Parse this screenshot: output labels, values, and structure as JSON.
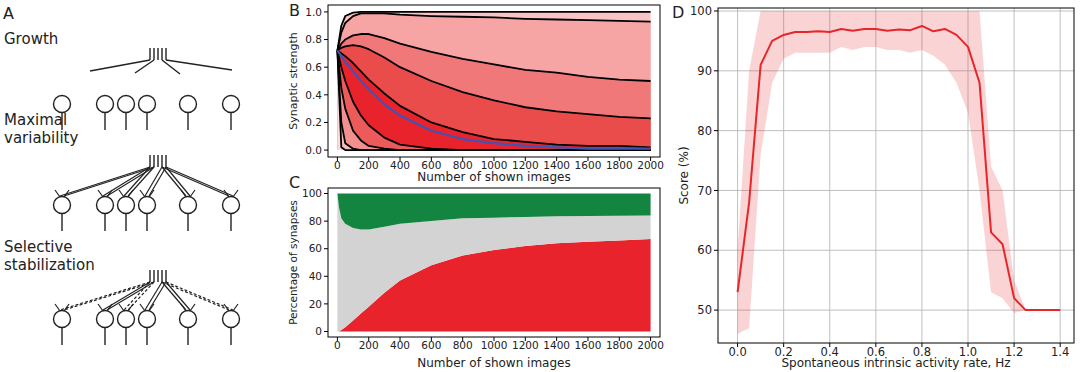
{
  "diagram": {
    "label": "A",
    "stages": [
      "Growth",
      "Maximal\nvariability",
      "Selective\nstabilization"
    ]
  },
  "chart_data": [
    {
      "type": "area",
      "title": "B",
      "x_label": "Number of shown images",
      "y_label": "Synaptic strength",
      "x": [
        0,
        25,
        50,
        100,
        150,
        200,
        300,
        400,
        600,
        800,
        1000,
        1200,
        1400,
        1600,
        1800,
        2000
      ],
      "series": [
        {
          "color": "#000000",
          "values": [
            0.72,
            0.9,
            0.97,
            0.995,
            1,
            1,
            1,
            1,
            1,
            1,
            1,
            1,
            1,
            1,
            1,
            1
          ]
        },
        {
          "color": "#000000",
          "values": [
            0.72,
            0.85,
            0.92,
            0.97,
            0.99,
            0.99,
            0.99,
            0.98,
            0.97,
            0.965,
            0.96,
            0.95,
            0.945,
            0.94,
            0.935,
            0.93
          ]
        },
        {
          "color": "#000000",
          "values": [
            0.72,
            0.77,
            0.8,
            0.83,
            0.84,
            0.84,
            0.81,
            0.77,
            0.71,
            0.66,
            0.62,
            0.58,
            0.56,
            0.53,
            0.51,
            0.5
          ]
        },
        {
          "color": "#000000",
          "values": [
            0.72,
            0.74,
            0.75,
            0.76,
            0.75,
            0.73,
            0.67,
            0.6,
            0.5,
            0.42,
            0.36,
            0.31,
            0.28,
            0.26,
            0.24,
            0.23
          ]
        },
        {
          "color": "#000000",
          "values": [
            0.72,
            0.7,
            0.68,
            0.63,
            0.57,
            0.51,
            0.41,
            0.32,
            0.2,
            0.13,
            0.08,
            0.06,
            0.04,
            0.03,
            0.03,
            0.02
          ]
        },
        {
          "color": "#000000",
          "values": [
            0.72,
            0.6,
            0.5,
            0.35,
            0.25,
            0.18,
            0.09,
            0.04,
            0.01,
            0,
            0,
            0,
            0,
            0,
            0,
            0
          ]
        },
        {
          "color": "#000000",
          "values": [
            0.72,
            0.45,
            0.3,
            0.14,
            0.07,
            0.03,
            0.01,
            0,
            0,
            0,
            0,
            0,
            0,
            0,
            0,
            0
          ]
        },
        {
          "color": "#000000",
          "values": [
            0.72,
            0.2,
            0.05,
            0.01,
            0,
            0,
            0,
            0,
            0,
            0,
            0,
            0,
            0,
            0,
            0,
            0
          ]
        },
        {
          "color": "#000000",
          "values": [
            0.72,
            0.02,
            0,
            0,
            0,
            0,
            0,
            0,
            0,
            0,
            0,
            0,
            0,
            0,
            0,
            0
          ]
        },
        {
          "type": "line",
          "color": "#3f54b4",
          "values": [
            0.72,
            0.68,
            0.64,
            0.57,
            0.5,
            0.44,
            0.33,
            0.25,
            0.14,
            0.08,
            0.05,
            0.03,
            0.02,
            0.01,
            0.01,
            0.01
          ]
        }
      ],
      "xlim": [
        -60,
        2060
      ],
      "ylim": [
        -0.05,
        1.05
      ],
      "xticks": [
        0,
        200,
        400,
        600,
        800,
        1000,
        1200,
        1400,
        1600,
        1800,
        2000
      ],
      "yticks": [
        {
          "value": 0,
          "label": "0.0"
        },
        {
          "value": 0.2,
          "label": "0.2"
        },
        {
          "value": 0.4,
          "label": "0.4"
        },
        {
          "value": 0.6,
          "label": "0.6"
        },
        {
          "value": 0.8,
          "label": "0.8"
        },
        {
          "value": 1,
          "label": "1.0"
        }
      ]
    },
    {
      "type": "area",
      "stacked": true,
      "title": "C",
      "x_label": "Number of shown images",
      "y_label": "Percentage of synapses",
      "x": [
        0,
        10,
        25,
        50,
        100,
        150,
        200,
        300,
        400,
        600,
        800,
        1000,
        1200,
        1400,
        1600,
        1800,
        2000
      ],
      "series": [
        {
          "color": "#e8232b",
          "values": [
            0,
            0,
            1,
            3,
            8,
            13,
            18,
            28,
            37,
            48,
            55,
            59,
            62,
            64,
            65,
            66,
            67
          ]
        },
        {
          "color": "#d3d3d3",
          "values": [
            100,
            90,
            81,
            75,
            67,
            61,
            56,
            48,
            41,
            32,
            27,
            23.5,
            21,
            19.5,
            18.7,
            17.9,
            17
          ]
        },
        {
          "color": "#148540",
          "values": [
            0,
            10,
            18,
            22,
            25,
            26,
            26,
            24,
            22,
            20,
            18,
            17.5,
            17,
            16.5,
            16.3,
            16.1,
            16
          ]
        }
      ],
      "xlim": [
        -60,
        2060
      ],
      "ylim": [
        -4,
        104
      ],
      "xticks": [
        0,
        200,
        400,
        600,
        800,
        1000,
        1200,
        1400,
        1600,
        1800,
        2000
      ],
      "yticks": [
        0,
        20,
        40,
        60,
        80,
        100
      ]
    },
    {
      "type": "line",
      "grid": true,
      "title": "D",
      "x_label": "Spontaneous intrinsic activity rate, Hz",
      "y_label": "Score (%)",
      "x": [
        0,
        0.05,
        0.1,
        0.15,
        0.2,
        0.25,
        0.3,
        0.35,
        0.4,
        0.45,
        0.5,
        0.55,
        0.6,
        0.65,
        0.7,
        0.75,
        0.8,
        0.85,
        0.9,
        0.95,
        1.0,
        1.05,
        1.1,
        1.15,
        1.2,
        1.25,
        1.3,
        1.35,
        1.4
      ],
      "series": [
        {
          "color": "#e8262a",
          "values": [
            53,
            68,
            91,
            95,
            96,
            96.5,
            96.5,
            96.6,
            96.5,
            97,
            96.7,
            97,
            97,
            96.7,
            96.9,
            96.8,
            97.5,
            96.6,
            97,
            96,
            94,
            88,
            63,
            61,
            52,
            50,
            50,
            50,
            50
          ],
          "lower": [
            46,
            47,
            76,
            88,
            92,
            93,
            93,
            93,
            93,
            94,
            93.5,
            94,
            94,
            93.5,
            93.5,
            93,
            93.5,
            92.5,
            91,
            88,
            83,
            70,
            53,
            52,
            49.5,
            50,
            50,
            50,
            50
          ],
          "upper": [
            60,
            90,
            100,
            100,
            100,
            100,
            100,
            100,
            100,
            100,
            100,
            100,
            100,
            100,
            100,
            100,
            100,
            100,
            100,
            100,
            100,
            100,
            74,
            70,
            55,
            50,
            50,
            50,
            50
          ]
        }
      ],
      "xlim": [
        -0.085,
        1.46
      ],
      "ylim": [
        44.5,
        100.5
      ],
      "xticks": [
        {
          "value": 0,
          "label": "0.0"
        },
        {
          "value": 0.2,
          "label": "0.2"
        },
        {
          "value": 0.4,
          "label": "0.4"
        },
        {
          "value": 0.6,
          "label": "0.6"
        },
        {
          "value": 0.8,
          "label": "0.8"
        },
        {
          "value": 1.0,
          "label": "1.0"
        },
        {
          "value": 1.2,
          "label": "1.2"
        },
        {
          "value": 1.4,
          "label": "1.4"
        }
      ],
      "yticks": [
        50,
        60,
        70,
        80,
        90,
        100
      ]
    }
  ]
}
